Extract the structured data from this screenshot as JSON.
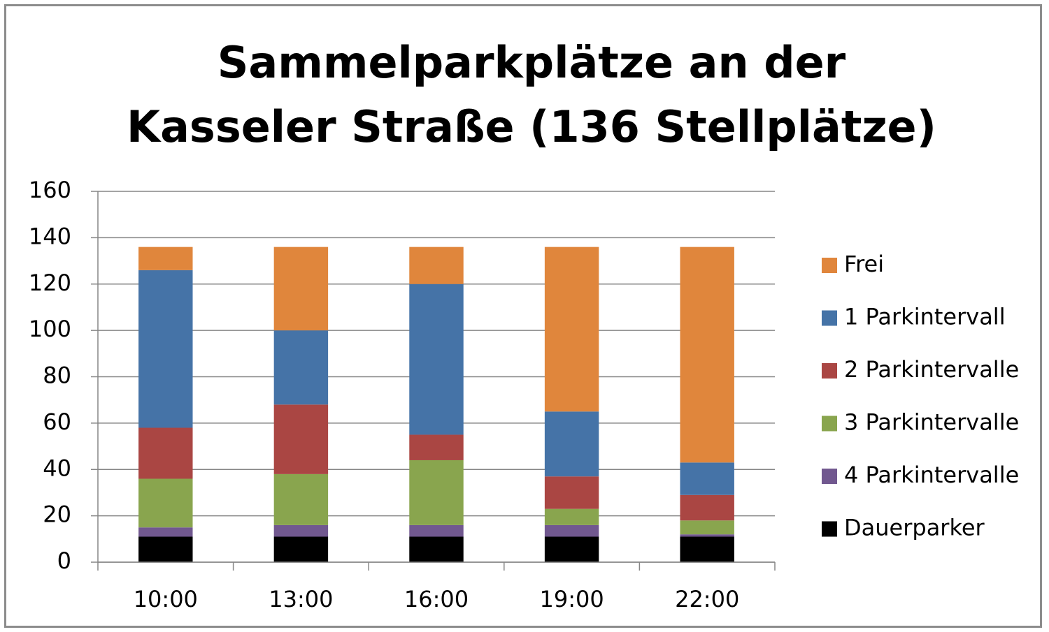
{
  "chart_data": {
    "type": "stacked-bar",
    "title": "Sammelparkplätze an der Kasseler Straße (136 Stellplätze)",
    "categories": [
      "10:00",
      "13:00",
      "16:00",
      "19:00",
      "22:00"
    ],
    "series": [
      {
        "name": "Dauerparker",
        "color": "#000000",
        "values": [
          11,
          11,
          11,
          11,
          11
        ]
      },
      {
        "name": "4 Parkintervalle",
        "color": "#71588f",
        "values": [
          4,
          5,
          5,
          5,
          1
        ]
      },
      {
        "name": "3 Parkintervalle",
        "color": "#89a54e",
        "values": [
          21,
          22,
          28,
          7,
          6
        ]
      },
      {
        "name": "2 Parkintervalle",
        "color": "#aa4643",
        "values": [
          22,
          30,
          11,
          14,
          11
        ]
      },
      {
        "name": "1 Parkintervall",
        "color": "#4573a7",
        "values": [
          68,
          32,
          65,
          28,
          14
        ]
      },
      {
        "name": "Frei",
        "color": "#e0863c",
        "values": [
          10,
          36,
          16,
          71,
          93
        ]
      }
    ],
    "ylim": [
      0,
      160
    ],
    "yticks": [
      0,
      20,
      40,
      60,
      80,
      100,
      120,
      140,
      160
    ],
    "grid": true,
    "legend": "right"
  }
}
